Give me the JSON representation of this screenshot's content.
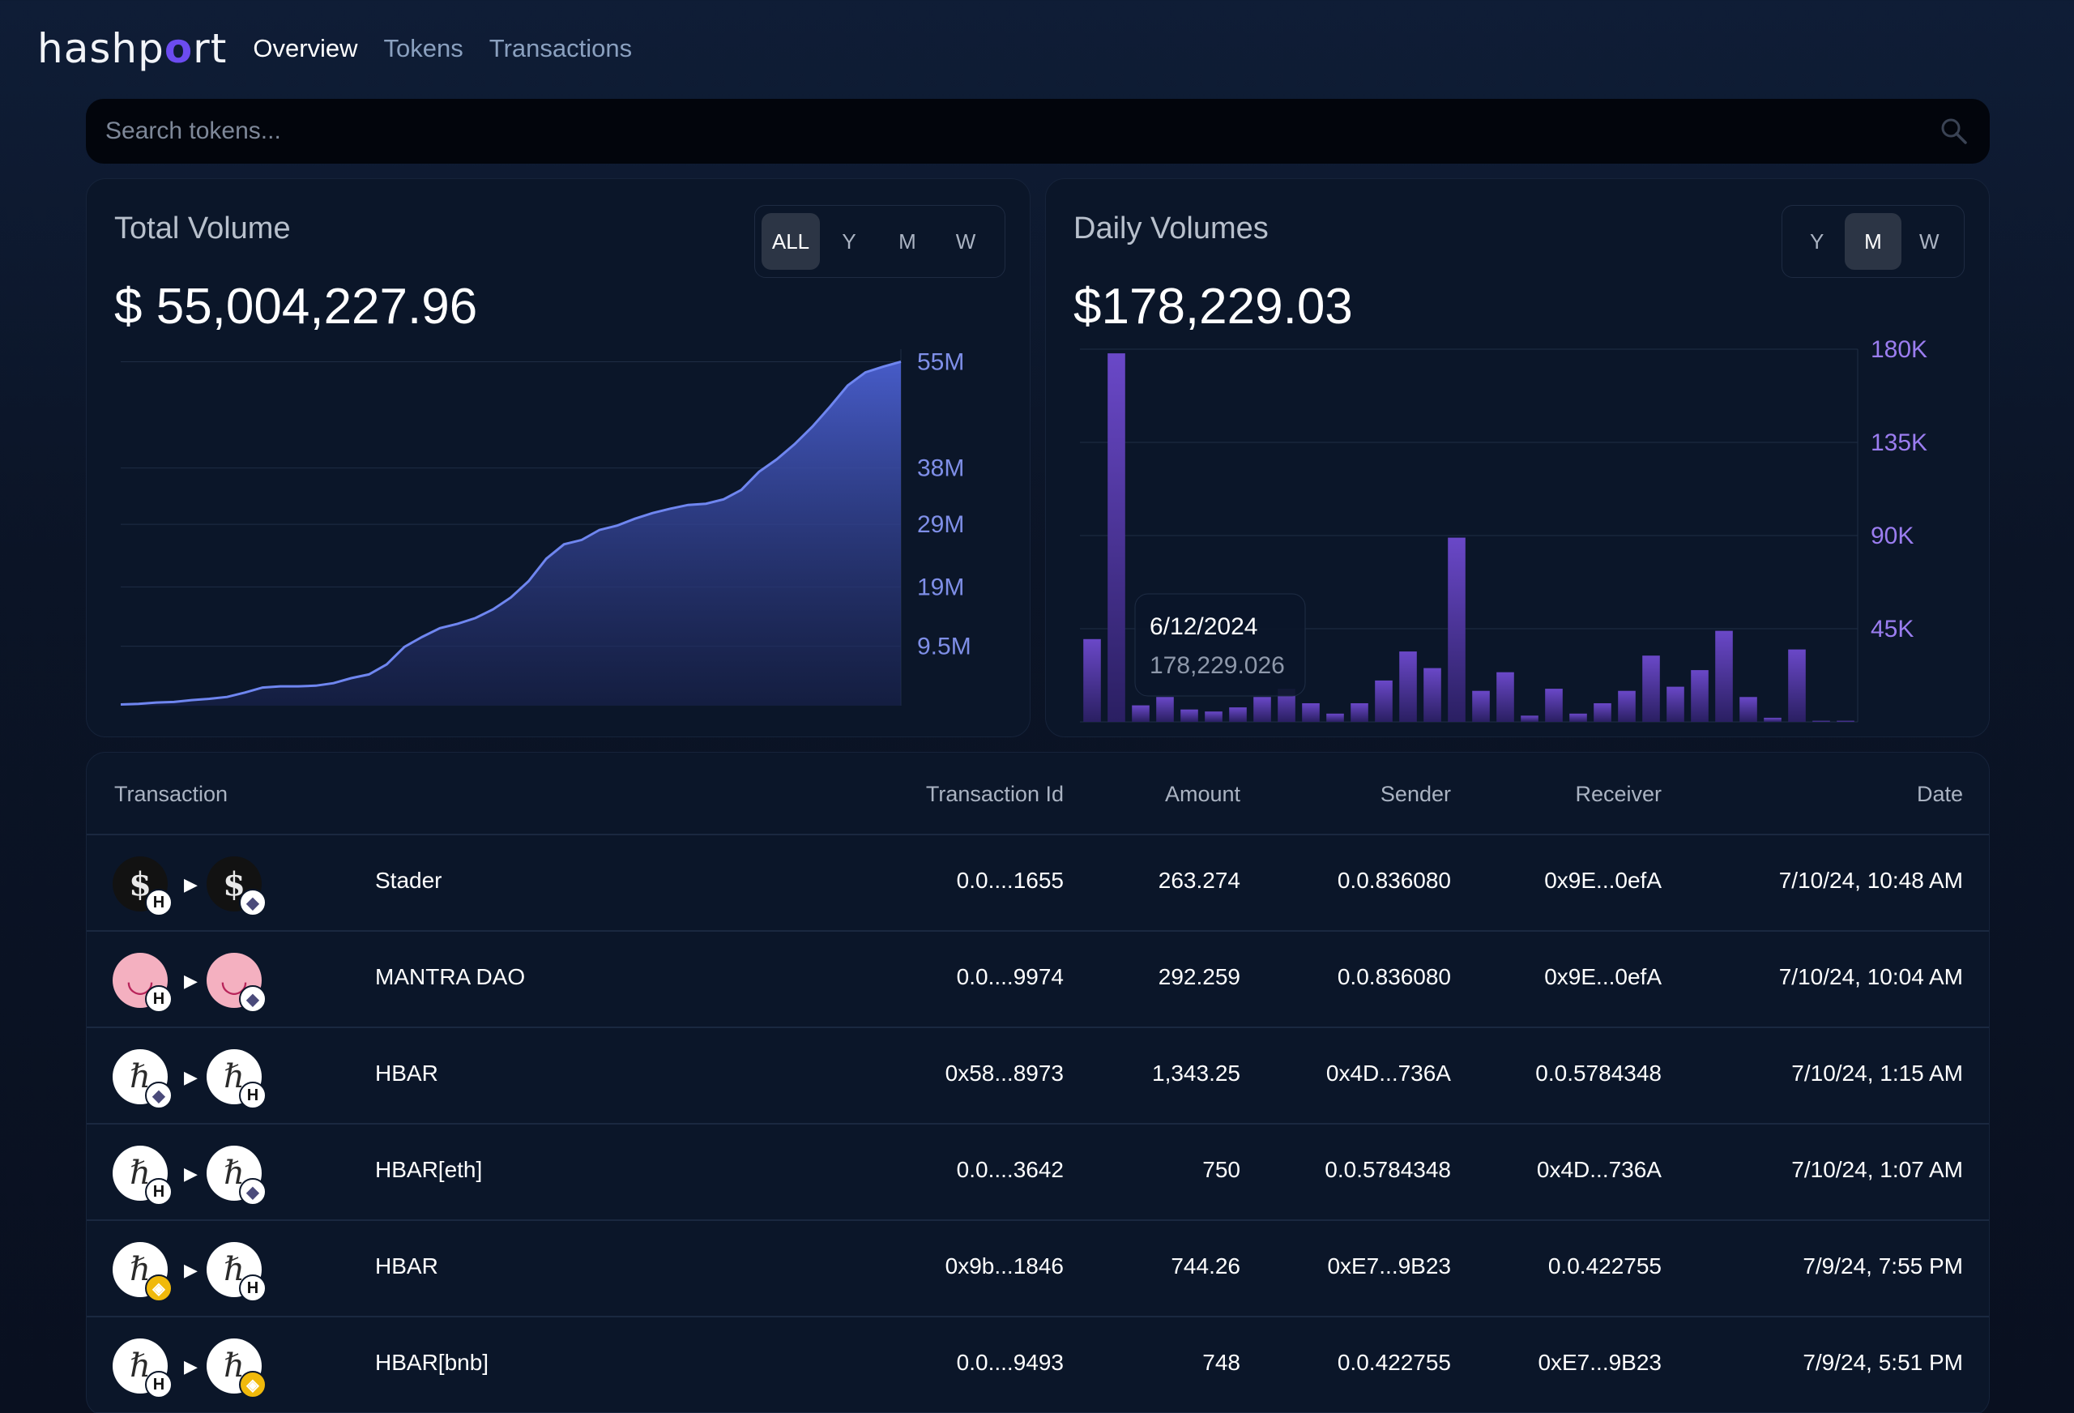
{
  "nav": {
    "logo": "hashport",
    "links": [
      "Overview",
      "Tokens",
      "Transactions"
    ]
  },
  "search": {
    "placeholder": "Search tokens..."
  },
  "total_volume": {
    "title": "Total Volume",
    "value": "$ 55,004,227.96",
    "ranges": [
      "ALL",
      "Y",
      "M",
      "W"
    ],
    "active_range": "ALL"
  },
  "daily_volumes": {
    "title": "Daily Volumes",
    "value": "$178,229.03",
    "ranges": [
      "Y",
      "M",
      "W"
    ],
    "active_range": "M",
    "tooltip": {
      "date": "6/12/2024",
      "value": "178,229.026"
    }
  },
  "chart_data": [
    {
      "type": "area",
      "title": "Total Volume",
      "y_ticks": [
        "55M",
        "38M",
        "29M",
        "19M",
        "9.5M"
      ],
      "ylim": [
        0,
        57000000
      ],
      "values": [
        0.2,
        0.3,
        0.5,
        0.6,
        0.9,
        1.1,
        1.4,
        2.1,
        2.9,
        3.1,
        3.1,
        3.2,
        3.6,
        4.4,
        5.0,
        6.6,
        9.4,
        11.0,
        12.4,
        13.1,
        14.0,
        15.4,
        17.3,
        19.9,
        23.5,
        25.8,
        26.5,
        28.1,
        28.8,
        29.9,
        30.8,
        31.5,
        32.1,
        32.3,
        33.0,
        34.5,
        37.4,
        39.4,
        41.8,
        44.6,
        47.8,
        51.2,
        53.3,
        54.2,
        55.0
      ],
      "grid": true
    },
    {
      "type": "bar",
      "title": "Daily Volumes",
      "y_ticks": [
        "180K",
        "135K",
        "90K",
        "45K"
      ],
      "ylim": [
        0,
        180000
      ],
      "values": [
        40000,
        178000,
        8000,
        12000,
        6000,
        5000,
        7000,
        12000,
        16000,
        9000,
        4000,
        9000,
        20000,
        34000,
        26000,
        89000,
        15000,
        24000,
        3000,
        16000,
        4000,
        9000,
        15000,
        32000,
        17000,
        25000,
        44000,
        12000,
        2000,
        35000,
        500,
        500
      ]
    }
  ],
  "table": {
    "columns": [
      "Transaction",
      "Transaction Id",
      "Amount",
      "Sender",
      "Receiver",
      "Date"
    ],
    "rows": [
      {
        "token": "Stader",
        "from_icon": "stader",
        "from_badge": "h",
        "to_icon": "stader",
        "to_badge": "e",
        "tx_id": "0.0....1655",
        "amount": "263.274",
        "sender": "0.0.836080",
        "receiver": "0x9E...0efA",
        "date": "7/10/24, 10:48 AM"
      },
      {
        "token": "MANTRA DAO",
        "from_icon": "mantra",
        "from_badge": "h",
        "to_icon": "mantra",
        "to_badge": "e",
        "tx_id": "0.0....9974",
        "amount": "292.259",
        "sender": "0.0.836080",
        "receiver": "0x9E...0efA",
        "date": "7/10/24, 10:04 AM"
      },
      {
        "token": "HBAR",
        "from_icon": "hbar",
        "from_badge": "e",
        "to_icon": "hbar",
        "to_badge": "h",
        "tx_id": "0x58...8973",
        "amount": "1,343.25",
        "sender": "0x4D...736A",
        "receiver": "0.0.5784348",
        "date": "7/10/24, 1:15 AM"
      },
      {
        "token": "HBAR[eth]",
        "from_icon": "hbar",
        "from_badge": "h",
        "to_icon": "hbar",
        "to_badge": "e",
        "tx_id": "0.0....3642",
        "amount": "750",
        "sender": "0.0.5784348",
        "receiver": "0x4D...736A",
        "date": "7/10/24, 1:07 AM"
      },
      {
        "token": "HBAR",
        "from_icon": "hbar",
        "from_badge": "b",
        "to_icon": "hbar",
        "to_badge": "h",
        "tx_id": "0x9b...1846",
        "amount": "744.26",
        "sender": "0xE7...9B23",
        "receiver": "0.0.422755",
        "date": "7/9/24, 7:55 PM"
      },
      {
        "token": "HBAR[bnb]",
        "from_icon": "hbar",
        "from_badge": "h",
        "to_icon": "hbar",
        "to_badge": "b",
        "tx_id": "0.0....9493",
        "amount": "748",
        "sender": "0.0.422755",
        "receiver": "0xE7...9B23",
        "date": "7/9/24, 5:51 PM"
      }
    ]
  }
}
